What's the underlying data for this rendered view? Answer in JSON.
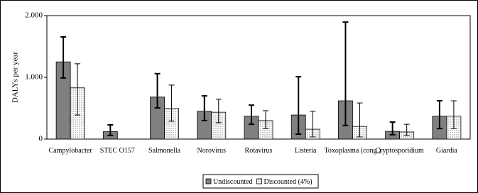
{
  "chart_data": {
    "type": "bar",
    "y_label": "DALYs per year",
    "categories": [
      "Campylobacter",
      "STEC O157",
      "Salmonella",
      "Norovirus",
      "Rotavirus",
      "Listeria",
      "Toxoplasma (cong.)",
      "Cryptosporidium",
      "Giardia"
    ],
    "series": [
      {
        "name": "Undiscounted",
        "color": "#808080",
        "values": [
          1250,
          120,
          680,
          450,
          370,
          390,
          620,
          125,
          370
        ],
        "upper": [
          1655,
          230,
          1060,
          700,
          550,
          1010,
          1895,
          275,
          620
        ],
        "lower": [
          990,
          60,
          505,
          300,
          240,
          80,
          220,
          70,
          170
        ]
      },
      {
        "name": "Discounted (4%)",
        "color": "#ffffff",
        "pattern": "dots",
        "values": [
          830,
          0,
          495,
          435,
          300,
          160,
          205,
          115,
          370
        ],
        "upper": [
          1220,
          0,
          875,
          645,
          460,
          450,
          585,
          240,
          620
        ],
        "lower": [
          390,
          0,
          290,
          265,
          170,
          35,
          35,
          60,
          170
        ]
      }
    ],
    "ylim": [
      0,
      2000
    ],
    "yticks": [
      0,
      {
        "value": 1000,
        "label": "1.000"
      },
      {
        "value": 2000,
        "label": "2.000"
      }
    ],
    "grid": false,
    "legend": "bottom"
  }
}
